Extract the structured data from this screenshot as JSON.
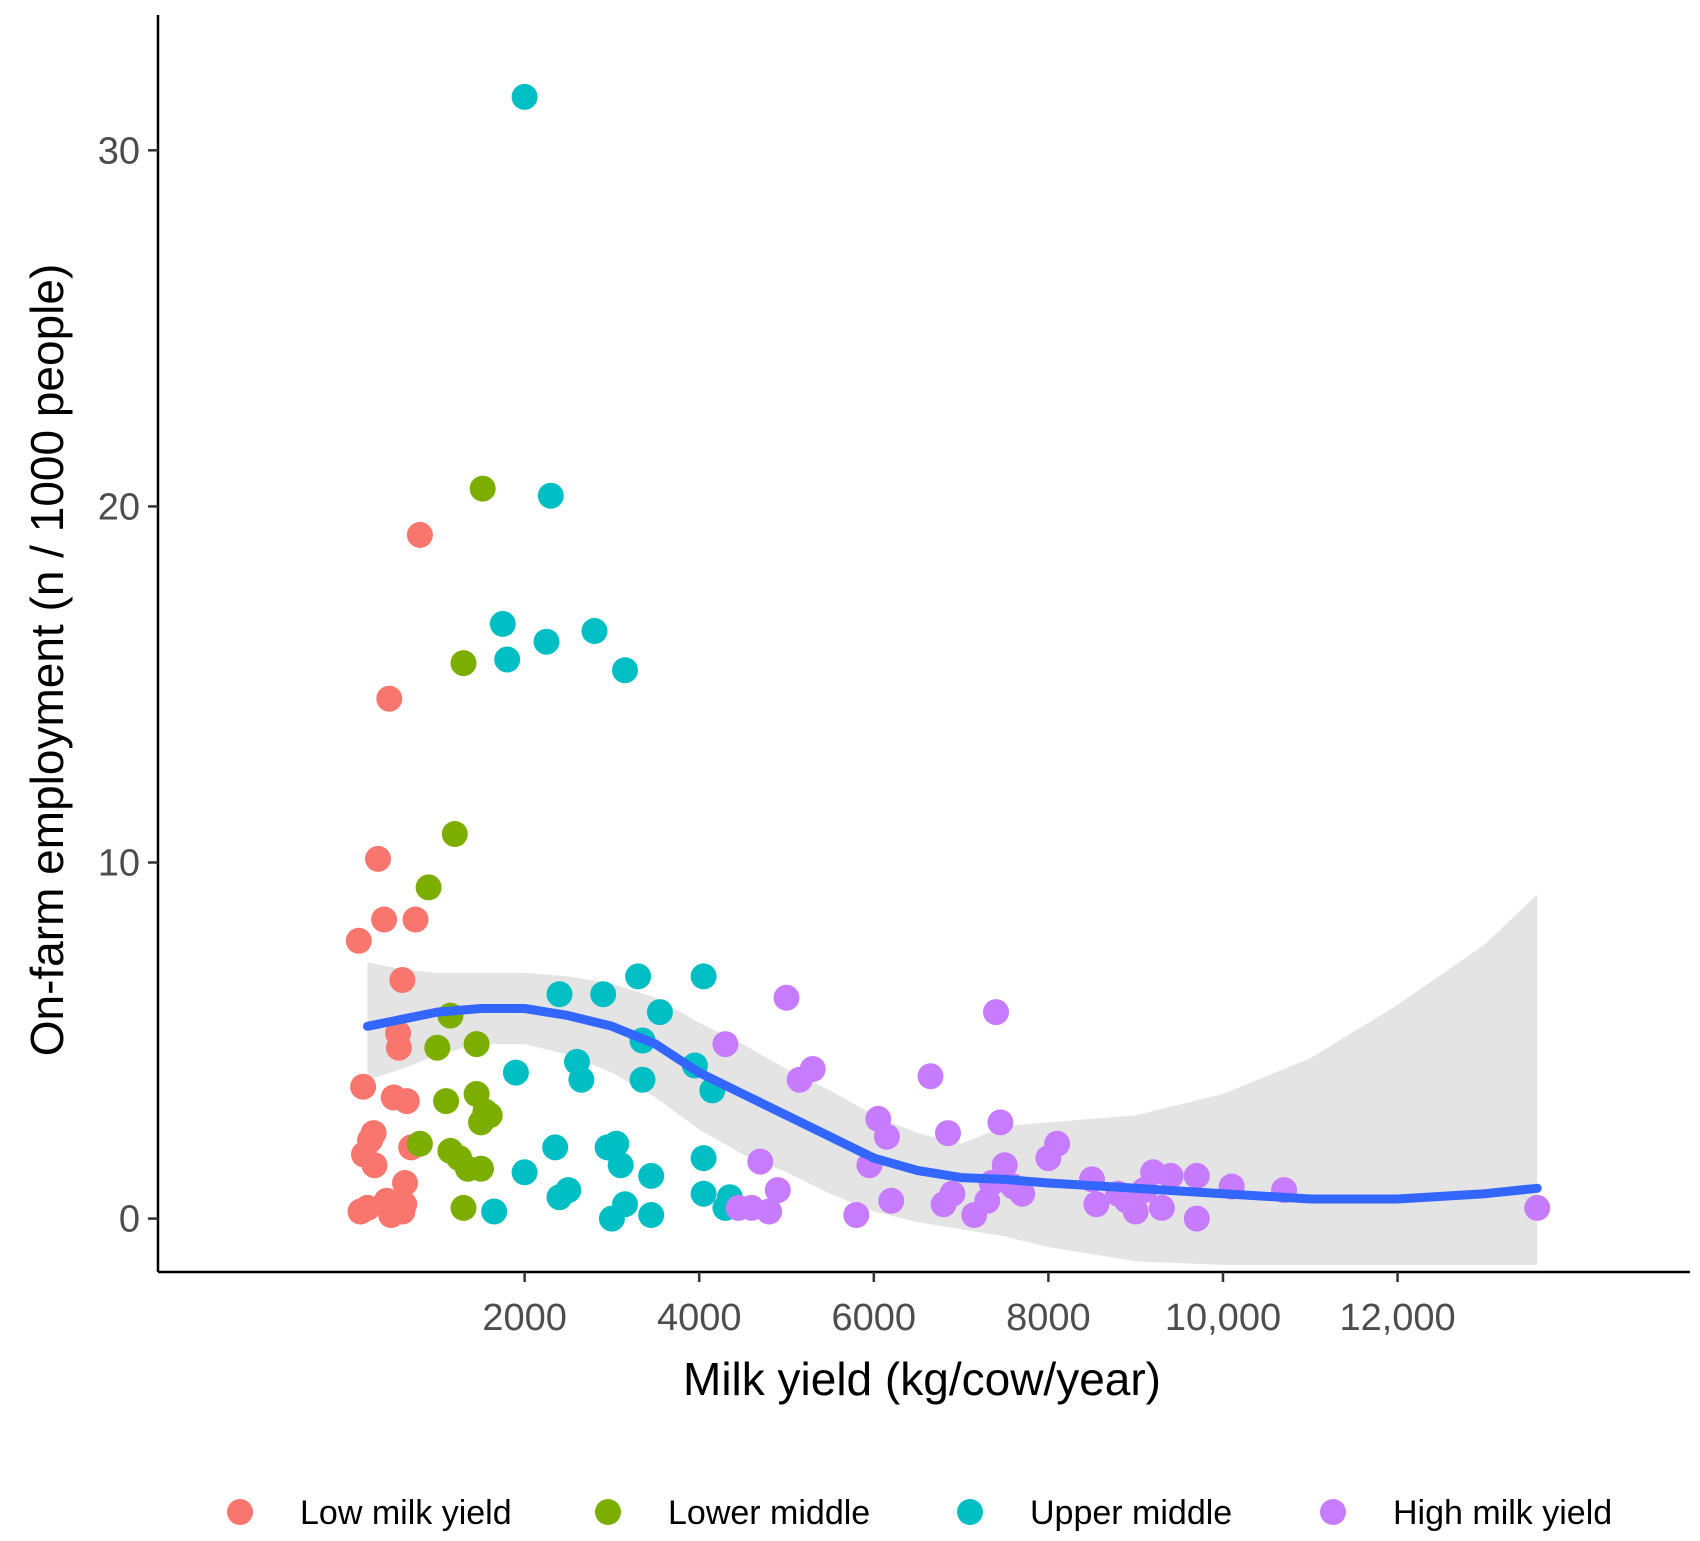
{
  "chart_data": {
    "type": "scatter",
    "title": "",
    "xlabel": "Milk yield (kg/cow/year)",
    "ylabel": "On-farm employment (n / 1000 people)",
    "xlim": [
      -2200,
      15350
    ],
    "ylim": [
      -1.5,
      33.8
    ],
    "x_ticks": [
      2000,
      4000,
      6000,
      8000,
      10000,
      12000
    ],
    "x_tick_labels": [
      "2000",
      "4000",
      "6000",
      "8000",
      "10,000",
      "12,000"
    ],
    "y_ticks": [
      0,
      10,
      20,
      30
    ],
    "y_tick_labels": [
      "0",
      "10",
      "20",
      "30"
    ],
    "grid": false,
    "legend_position": "bottom",
    "series": [
      {
        "name": "Low milk yield",
        "color": "#F8766D",
        "points": [
          [
            120,
            0.2
          ],
          [
            160,
            1.8
          ],
          [
            200,
            0.3
          ],
          [
            230,
            2.2
          ],
          [
            280,
            1.5
          ],
          [
            320,
            10.1
          ],
          [
            390,
            8.4
          ],
          [
            450,
            14.6
          ],
          [
            470,
            0.1
          ],
          [
            500,
            3.4
          ],
          [
            550,
            5.2
          ],
          [
            560,
            4.8
          ],
          [
            600,
            6.7
          ],
          [
            620,
            0.4
          ],
          [
            630,
            1.0
          ],
          [
            700,
            2.0
          ],
          [
            750,
            8.4
          ],
          [
            800,
            19.2
          ],
          [
            270,
            2.4
          ],
          [
            420,
            0.5
          ],
          [
            100,
            7.8
          ],
          [
            150,
            3.7
          ],
          [
            600,
            0.2
          ],
          [
            650,
            3.3
          ]
        ]
      },
      {
        "name": "Lower middle",
        "color": "#7CAE00",
        "points": [
          [
            800,
            2.1
          ],
          [
            900,
            9.3
          ],
          [
            1000,
            4.8
          ],
          [
            1100,
            3.3
          ],
          [
            1150,
            5.7
          ],
          [
            1150,
            1.9
          ],
          [
            1200,
            10.8
          ],
          [
            1250,
            1.7
          ],
          [
            1300,
            15.6
          ],
          [
            1300,
            0.3
          ],
          [
            1350,
            1.4
          ],
          [
            1450,
            4.9
          ],
          [
            1450,
            3.5
          ],
          [
            1500,
            2.7
          ],
          [
            1520,
            20.5
          ],
          [
            1550,
            3.0
          ],
          [
            1600,
            2.9
          ],
          [
            1500,
            1.4
          ]
        ]
      },
      {
        "name": "Upper middle",
        "color": "#00BFC4",
        "points": [
          [
            1650,
            0.2
          ],
          [
            1750,
            16.7
          ],
          [
            1800,
            15.7
          ],
          [
            1900,
            4.1
          ],
          [
            2000,
            31.5
          ],
          [
            2000,
            1.3
          ],
          [
            2250,
            16.2
          ],
          [
            2300,
            20.3
          ],
          [
            2350,
            2.0
          ],
          [
            2400,
            6.3
          ],
          [
            2400,
            0.6
          ],
          [
            2500,
            0.8
          ],
          [
            2600,
            4.4
          ],
          [
            2650,
            3.9
          ],
          [
            2800,
            16.5
          ],
          [
            2900,
            6.3
          ],
          [
            2950,
            2.0
          ],
          [
            3000,
            0.0
          ],
          [
            3050,
            2.1
          ],
          [
            3100,
            1.5
          ],
          [
            3150,
            0.4
          ],
          [
            3150,
            15.4
          ],
          [
            3300,
            6.8
          ],
          [
            3350,
            3.9
          ],
          [
            3350,
            5.0
          ],
          [
            3450,
            1.2
          ],
          [
            3450,
            0.1
          ],
          [
            3550,
            5.8
          ],
          [
            3950,
            4.3
          ],
          [
            4050,
            6.8
          ],
          [
            4050,
            1.7
          ],
          [
            4050,
            0.7
          ],
          [
            4150,
            3.6
          ],
          [
            4300,
            0.3
          ],
          [
            4350,
            0.6
          ]
        ]
      },
      {
        "name": "High milk yield",
        "color": "#C77CFF",
        "points": [
          [
            4300,
            4.9
          ],
          [
            4450,
            0.3
          ],
          [
            4600,
            0.3
          ],
          [
            4700,
            1.6
          ],
          [
            4800,
            0.2
          ],
          [
            4900,
            0.8
          ],
          [
            5000,
            6.2
          ],
          [
            5150,
            3.9
          ],
          [
            5300,
            4.2
          ],
          [
            5800,
            0.1
          ],
          [
            5950,
            1.5
          ],
          [
            6050,
            2.8
          ],
          [
            6150,
            2.3
          ],
          [
            6200,
            0.5
          ],
          [
            6650,
            4.0
          ],
          [
            6800,
            0.4
          ],
          [
            6850,
            2.4
          ],
          [
            6900,
            0.7
          ],
          [
            7150,
            0.1
          ],
          [
            7300,
            0.5
          ],
          [
            7350,
            1.0
          ],
          [
            7400,
            5.8
          ],
          [
            7450,
            2.7
          ],
          [
            7500,
            1.5
          ],
          [
            7600,
            0.9
          ],
          [
            7700,
            0.7
          ],
          [
            8000,
            1.7
          ],
          [
            8100,
            2.1
          ],
          [
            8500,
            1.1
          ],
          [
            8550,
            0.4
          ],
          [
            8800,
            0.7
          ],
          [
            8900,
            0.5
          ],
          [
            9000,
            0.2
          ],
          [
            9100,
            0.8
          ],
          [
            9200,
            1.3
          ],
          [
            9300,
            0.3
          ],
          [
            9400,
            1.2
          ],
          [
            9700,
            1.2
          ],
          [
            9700,
            0.0
          ],
          [
            10100,
            0.9
          ],
          [
            10700,
            0.8
          ],
          [
            13600,
            0.3
          ]
        ]
      }
    ],
    "smooth_line": {
      "color": "#3366FF",
      "x": [
        200,
        600,
        1000,
        1500,
        2000,
        2500,
        3000,
        3500,
        4000,
        4500,
        5000,
        5500,
        6000,
        6500,
        7000,
        7500,
        8000,
        9000,
        10000,
        11000,
        12000,
        13000,
        13600
      ],
      "y": [
        5.4,
        5.6,
        5.8,
        5.9,
        5.9,
        5.7,
        5.4,
        4.9,
        4.1,
        3.5,
        2.9,
        2.3,
        1.7,
        1.35,
        1.15,
        1.1,
        1.0,
        0.85,
        0.7,
        0.55,
        0.55,
        0.7,
        0.85
      ]
    },
    "confidence_band": {
      "color": "#D9D9D9",
      "x": [
        200,
        600,
        1000,
        1500,
        2000,
        2500,
        3000,
        3500,
        4000,
        4500,
        5000,
        5500,
        6000,
        6500,
        7000,
        7500,
        8000,
        9000,
        10000,
        11000,
        12000,
        13000,
        13600
      ],
      "upper": [
        7.2,
        7.0,
        6.9,
        6.9,
        6.9,
        6.8,
        6.6,
        6.2,
        5.5,
        4.9,
        4.2,
        3.6,
        2.9,
        2.4,
        2.1,
        2.6,
        2.7,
        2.9,
        3.5,
        4.5,
        6.0,
        7.7,
        9.1
      ],
      "lower": [
        3.9,
        4.2,
        4.6,
        4.9,
        4.9,
        4.6,
        4.1,
        3.4,
        2.5,
        1.8,
        1.3,
        0.7,
        0.2,
        -0.1,
        -0.3,
        -0.5,
        -0.8,
        -1.2,
        -1.3,
        -1.3,
        -1.3,
        -1.3,
        -1.3
      ]
    }
  }
}
